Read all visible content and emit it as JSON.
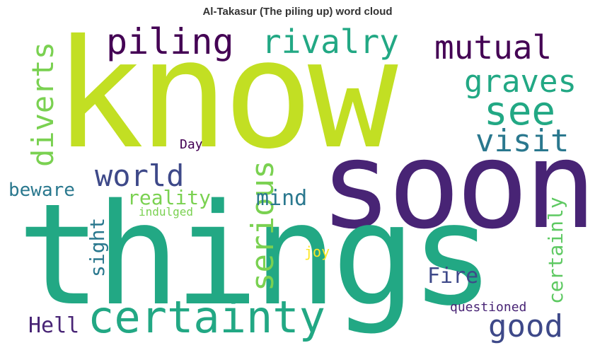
{
  "title": "Al-Takasur (The piling up) word cloud",
  "words": [
    {
      "text": "know",
      "color": "#c2df23"
    },
    {
      "text": "soon",
      "color": "#482475"
    },
    {
      "text": "things",
      "color": "#22a884"
    },
    {
      "text": "certainty",
      "color": "#22a884"
    },
    {
      "text": "piling",
      "color": "#440154"
    },
    {
      "text": "rivalry",
      "color": "#22a884"
    },
    {
      "text": "mutual",
      "color": "#440154"
    },
    {
      "text": "graves",
      "color": "#22a884"
    },
    {
      "text": "see",
      "color": "#22a884"
    },
    {
      "text": "visit",
      "color": "#2a788e"
    },
    {
      "text": "diverts",
      "color": "#7ad151"
    },
    {
      "text": "world",
      "color": "#3e4989"
    },
    {
      "text": "Day",
      "color": "#440154"
    },
    {
      "text": "beware",
      "color": "#2a788e"
    },
    {
      "text": "reality",
      "color": "#7ad151"
    },
    {
      "text": "serious",
      "color": "#7ad151"
    },
    {
      "text": "mind",
      "color": "#2a788e"
    },
    {
      "text": "indulged",
      "color": "#7ad151"
    },
    {
      "text": "certainly",
      "color": "#5ec962"
    },
    {
      "text": "sight",
      "color": "#2a788e"
    },
    {
      "text": "joy",
      "color": "#fde725"
    },
    {
      "text": "Fire",
      "color": "#3e4989"
    },
    {
      "text": "questioned",
      "color": "#482475"
    },
    {
      "text": "Hell",
      "color": "#482475"
    },
    {
      "text": "good",
      "color": "#3e4989"
    }
  ]
}
